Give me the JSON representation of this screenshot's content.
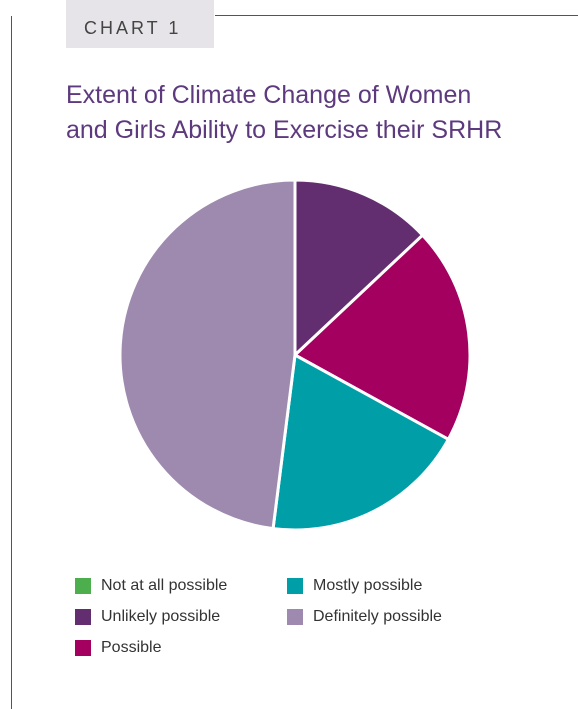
{
  "chart_label": "CHART 1",
  "title_lines": [
    "Extent of Climate Change of Women",
    "and Girls Ability to Exercise their SRHR"
  ],
  "chart_data": {
    "type": "pie",
    "title": "Extent of Climate Change of Women and Girls Ability to Exercise their SRHR",
    "legend_position": "bottom",
    "slices": [
      {
        "label": "Not at all possible",
        "value": 0,
        "color": "#4cae4c"
      },
      {
        "label": "Unlikely possible",
        "value": 13,
        "color": "#632e6f"
      },
      {
        "label": "Possible",
        "value": 20,
        "color": "#a3005f"
      },
      {
        "label": "Mostly possible",
        "value": 19,
        "color": "#009fa8"
      },
      {
        "label": "Definitely possible",
        "value": 48,
        "color": "#9d8aae"
      }
    ]
  },
  "colors": {
    "title": "#5d3a7e",
    "frame": "#555555",
    "label_background": "#e6e4e8"
  }
}
